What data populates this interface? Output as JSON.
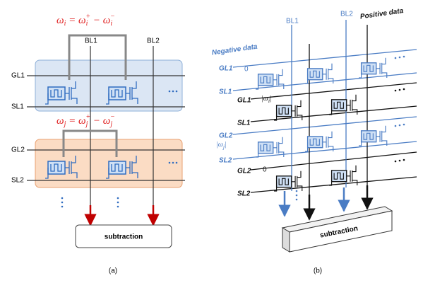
{
  "panel_a": {
    "formula_i": [
      "ω",
      "i",
      " = ",
      "ω",
      "i",
      "+",
      " − ",
      "ω",
      "i",
      "−"
    ],
    "bl1": "BL1",
    "bl2": "BL2",
    "gl1": "GL1",
    "sl1": "SL1",
    "formula_j": [
      "ω",
      "j",
      " = ",
      "ω",
      "j",
      "+",
      " − ",
      "ω",
      "j",
      "−"
    ],
    "gl2": "GL2",
    "sl2": "SL2",
    "output": "subtraction",
    "caption": "(a)"
  },
  "panel_b": {
    "bl1": "BL1",
    "bl2": "BL2",
    "positive": "Positive data",
    "negative": "Negative data",
    "gl1_neg": "GL1",
    "sl1_neg": "SL1",
    "gl1_pos": "GL1",
    "sl1_pos": "SL1",
    "gl2_neg": "GL2",
    "sl2_neg": "SL2",
    "gl2_pos": "GL2",
    "sl2_pos": "SL2",
    "zero_1": "0",
    "abs_i": [
      "|ω",
      "i",
      "|"
    ],
    "abs_j": [
      "|ω",
      "j",
      "|"
    ],
    "zero_2": "0",
    "output": "subtraction",
    "caption": "(b)"
  }
}
